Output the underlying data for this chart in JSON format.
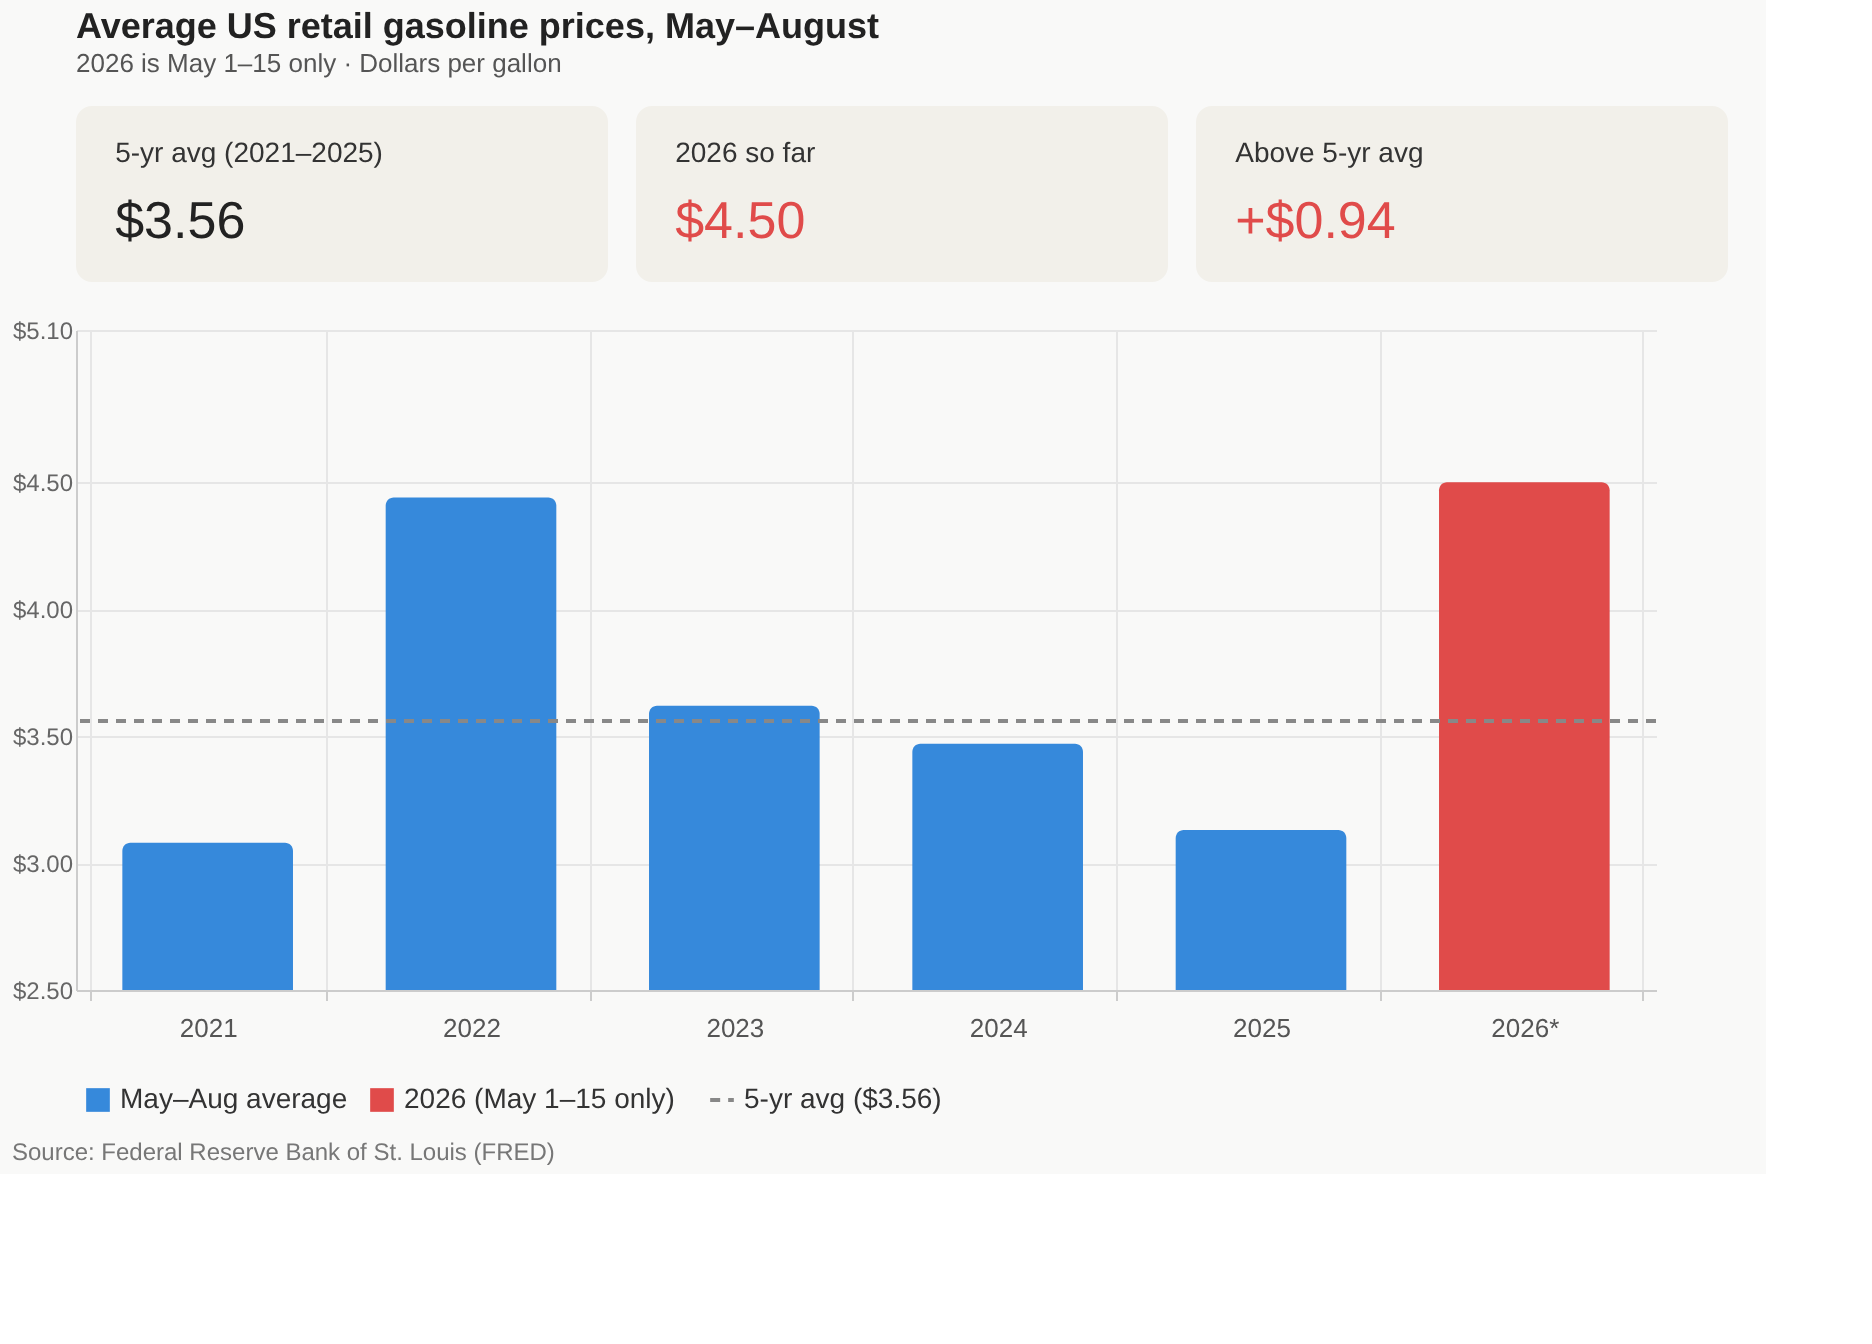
{
  "chart_data": [
    {
      "type": "other",
      "title": "Average US retail gasoline prices, May–August",
      "subtitle": "2026 is May 1–15 only · Dollars per gallon",
      "annotations": [
        "5-yr avg (2021–2025)",
        "$3.56",
        "2026 so far",
        "$4.50",
        "Above 5-yr avg",
        "+$0.94"
      ]
    },
    {
      "type": "bar",
      "categories": [
        "2021",
        "2022",
        "2023",
        "2024",
        "2025",
        "2026*"
      ],
      "series": [
        {
          "name": "May–Aug average",
          "color": "#3689db",
          "values": [
            3.08,
            4.44,
            3.62,
            3.47,
            3.13,
            null
          ]
        },
        {
          "name": "2026 (May 1–15 only)",
          "color": "#e04b4a",
          "values": [
            null,
            null,
            null,
            null,
            null,
            4.5
          ]
        }
      ],
      "ylim": [
        2.5,
        5.1
      ],
      "yticks": [
        {
          "value": 2.5,
          "label": "$2.50"
        },
        {
          "value": 3.0,
          "label": "$3.00"
        },
        {
          "value": 3.5,
          "label": "$3.50"
        },
        {
          "value": 4.0,
          "label": "$4.00"
        },
        {
          "value": 4.5,
          "label": "$4.50"
        },
        {
          "value": 5.1,
          "label": "$5.10"
        }
      ],
      "grid": true,
      "legend": "bottom",
      "ref_lines": [
        {
          "axis": "y",
          "value": 3.56,
          "label": "5-yr avg ($3.56)",
          "color": "#888888",
          "line_style": "dashed"
        }
      ],
      "annotations": [
        "Source: Federal Reserve Bank of St. Louis (FRED)"
      ]
    }
  ]
}
